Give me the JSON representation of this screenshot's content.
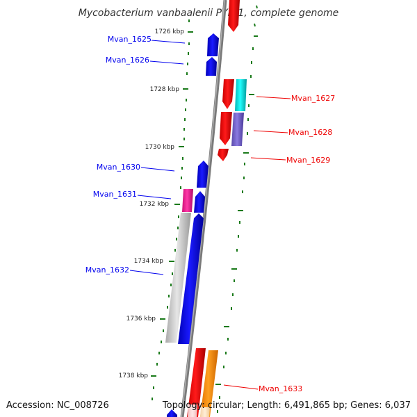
{
  "title": "Mycobacterium vanbaalenii PYR-1, complete genome",
  "footer": {
    "accession": "Accession: NC_008726",
    "summary": "Topology: circular; Length: 6,491,865 bp; Genes: 6,037"
  },
  "colors": {
    "forward_gene": "#0000ee",
    "reverse_gene": "#ee0000",
    "backbone": "#888888",
    "tick": "#1a7a1a",
    "cyan_feature": "#00dddd",
    "lavender_feature": "#7766cc",
    "magenta_feature": "#ee2299",
    "orange_feature": "#ff8800"
  },
  "scale_labels": [
    {
      "id": "tick-1726",
      "text": "1726 kbp"
    },
    {
      "id": "tick-1728",
      "text": "1728 kbp"
    },
    {
      "id": "tick-1730",
      "text": "1730 kbp"
    },
    {
      "id": "tick-1732",
      "text": "1732 kbp"
    },
    {
      "id": "tick-1734",
      "text": "1734 kbp"
    },
    {
      "id": "tick-1736",
      "text": "1736 kbp"
    },
    {
      "id": "tick-1738",
      "text": "1738 kbp"
    }
  ],
  "genes": [
    {
      "id": "mvan-1625",
      "label": "Mvan_1625",
      "strand": "+"
    },
    {
      "id": "mvan-1626",
      "label": "Mvan_1626",
      "strand": "+"
    },
    {
      "id": "mvan-1627",
      "label": "Mvan_1627",
      "strand": "-"
    },
    {
      "id": "mvan-1628",
      "label": "Mvan_1628",
      "strand": "-"
    },
    {
      "id": "mvan-1629",
      "label": "Mvan_1629",
      "strand": "-"
    },
    {
      "id": "mvan-1630",
      "label": "Mvan_1630",
      "strand": "+"
    },
    {
      "id": "mvan-1631",
      "label": "Mvan_1631",
      "strand": "+"
    },
    {
      "id": "mvan-1632",
      "label": "Mvan_1632",
      "strand": "+"
    },
    {
      "id": "mvan-1633",
      "label": "Mvan_1633",
      "strand": "-"
    }
  ]
}
